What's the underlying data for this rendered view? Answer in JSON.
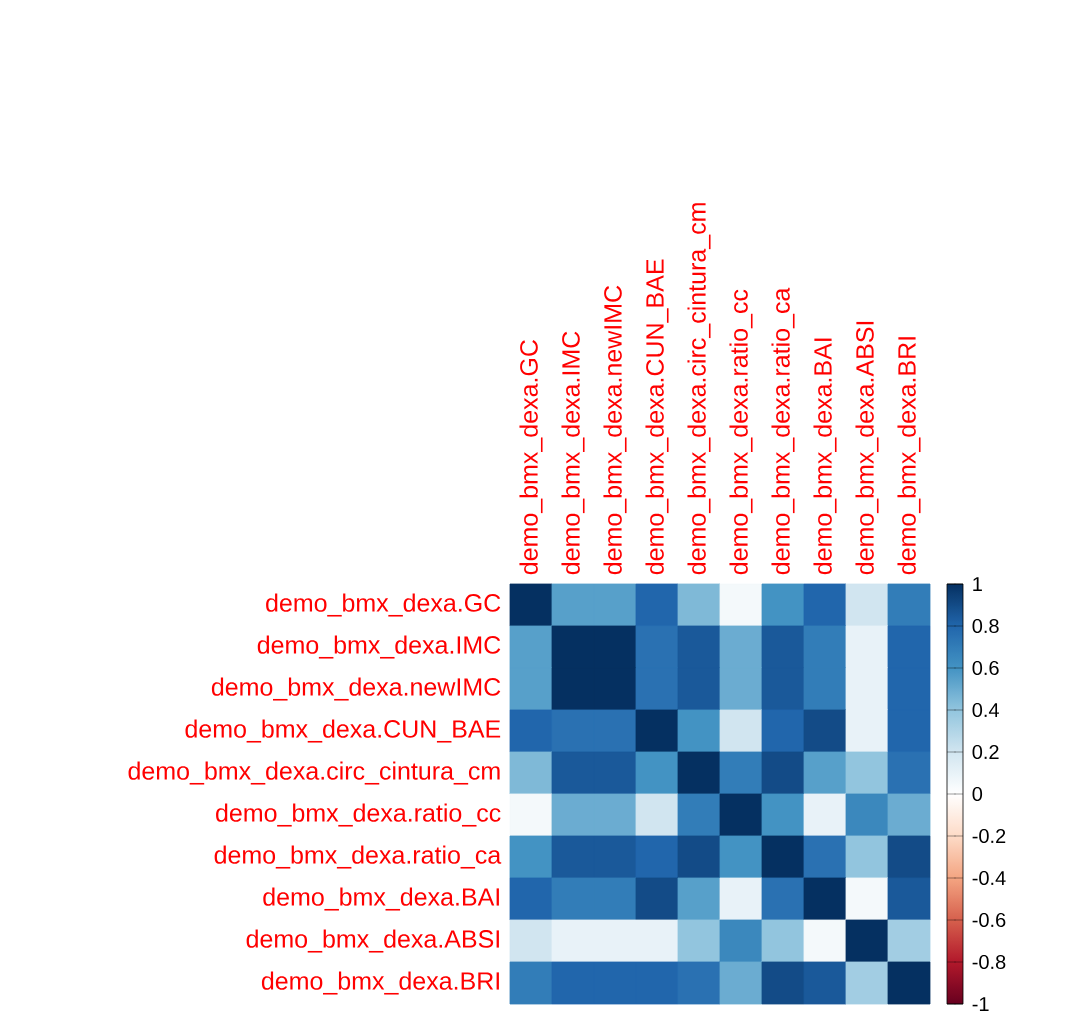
{
  "chart_data": {
    "type": "heatmap",
    "categories": [
      "demo_bmx_dexa.GC",
      "demo_bmx_dexa.IMC",
      "demo_bmx_dexa.newIMC",
      "demo_bmx_dexa.CUN_BAE",
      "demo_bmx_dexa.circ_cintura_cm",
      "demo_bmx_dexa.ratio_cc",
      "demo_bmx_dexa.ratio_ca",
      "demo_bmx_dexa.BAI",
      "demo_bmx_dexa.ABSI",
      "demo_bmx_dexa.BRI"
    ],
    "y_categories": [
      "demo_bmx_dexa.GC",
      "demo_bmx_dexa.IMC",
      "demo_bmx_dexa.newIMC",
      "demo_bmx_dexa.CUN_BAE",
      "demo_bmx_dexa.circ_cintura_cm",
      "demo_bmx_dexa.ratio_cc",
      "demo_bmx_dexa.ratio_ca",
      "demo_bmx_dexa.BAI",
      "demo_bmx_dexa.ABSI",
      "demo_bmx_dexa.BRI"
    ],
    "cells": [
      [
        1,
        0.55,
        0.55,
        0.8,
        0.45,
        0.05,
        0.6,
        0.8,
        0.2,
        0.7
      ],
      [
        0.55,
        1,
        1,
        0.75,
        0.85,
        0.5,
        0.85,
        0.7,
        0.1,
        0.8
      ],
      [
        0.55,
        1,
        1,
        0.75,
        0.85,
        0.5,
        0.85,
        0.7,
        0.1,
        0.8
      ],
      [
        0.8,
        0.75,
        0.75,
        1,
        0.6,
        0.2,
        0.8,
        0.9,
        0.1,
        0.8
      ],
      [
        0.45,
        0.85,
        0.85,
        0.6,
        1,
        0.7,
        0.9,
        0.55,
        0.4,
        0.75
      ],
      [
        0.05,
        0.5,
        0.5,
        0.2,
        0.7,
        1,
        0.6,
        0.1,
        0.65,
        0.5
      ],
      [
        0.6,
        0.85,
        0.85,
        0.8,
        0.9,
        0.6,
        1,
        0.75,
        0.4,
        0.9
      ],
      [
        0.8,
        0.7,
        0.7,
        0.9,
        0.55,
        0.1,
        0.75,
        1,
        0.05,
        0.85
      ],
      [
        0.2,
        0.1,
        0.1,
        0.1,
        0.4,
        0.65,
        0.4,
        0.05,
        1,
        0.35
      ],
      [
        0.7,
        0.8,
        0.8,
        0.8,
        0.75,
        0.5,
        0.9,
        0.85,
        0.35,
        1
      ]
    ],
    "clim": [
      -1,
      1
    ],
    "cticks": [
      -1,
      -0.8,
      -0.6,
      -0.4,
      -0.2,
      0,
      0.2,
      0.4,
      0.6,
      0.8,
      1
    ]
  }
}
